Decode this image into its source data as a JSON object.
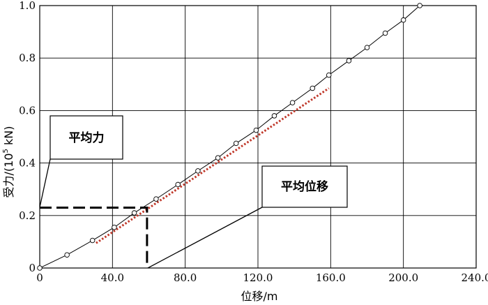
{
  "chart_data": {
    "type": "line",
    "xlabel": "位移/m",
    "ylabel": "受力/(10",
    "ylabel_sup": "5",
    "ylabel_unit": " kN)",
    "xlim": [
      0,
      240
    ],
    "ylim": [
      0,
      1.0
    ],
    "grid": true,
    "x_ticks": [
      {
        "value": 0,
        "label": "0"
      },
      {
        "value": 40,
        "label": "40.0"
      },
      {
        "value": 80,
        "label": "80.0"
      },
      {
        "value": 120,
        "label": "120.0"
      },
      {
        "value": 160,
        "label": "160.0"
      },
      {
        "value": 200,
        "label": "200.0"
      },
      {
        "value": 240,
        "label": "240.0"
      }
    ],
    "y_ticks": [
      {
        "value": 0,
        "label": "0"
      },
      {
        "value": 0.2,
        "label": "0.2"
      },
      {
        "value": 0.4,
        "label": "0.4"
      },
      {
        "value": 0.6,
        "label": "0.6"
      },
      {
        "value": 0.8,
        "label": "0.8"
      },
      {
        "value": 1.0,
        "label": "1.0"
      }
    ],
    "series": [
      {
        "style": "solid line with circle markers",
        "color": "#000000",
        "points": [
          [
            0,
            0
          ],
          [
            15,
            0.05
          ],
          [
            29,
            0.105
          ],
          [
            41,
            0.155
          ],
          [
            52,
            0.21
          ],
          [
            64,
            0.263
          ],
          [
            76,
            0.318
          ],
          [
            87,
            0.37
          ],
          [
            98,
            0.42
          ],
          [
            108,
            0.475
          ],
          [
            119,
            0.525
          ],
          [
            129,
            0.58
          ],
          [
            139,
            0.63
          ],
          [
            150,
            0.685
          ],
          [
            159,
            0.735
          ],
          [
            170,
            0.79
          ],
          [
            180,
            0.84
          ],
          [
            190,
            0.895
          ],
          [
            200,
            0.945
          ],
          [
            209,
            1.0
          ]
        ]
      },
      {
        "style": "dotted line",
        "color": "#c0392b",
        "points": [
          [
            31,
            0.095
          ],
          [
            159,
            0.685
          ]
        ]
      },
      {
        "style": "dashed reference",
        "color": "#000000",
        "points": [
          [
            0,
            0.23
          ],
          [
            59,
            0.23
          ],
          [
            59,
            0
          ]
        ]
      }
    ],
    "annotations": [
      {
        "text": "平均力",
        "target": [
          0,
          0.23
        ]
      },
      {
        "text": "平均位移",
        "target": [
          59,
          0
        ]
      }
    ]
  }
}
